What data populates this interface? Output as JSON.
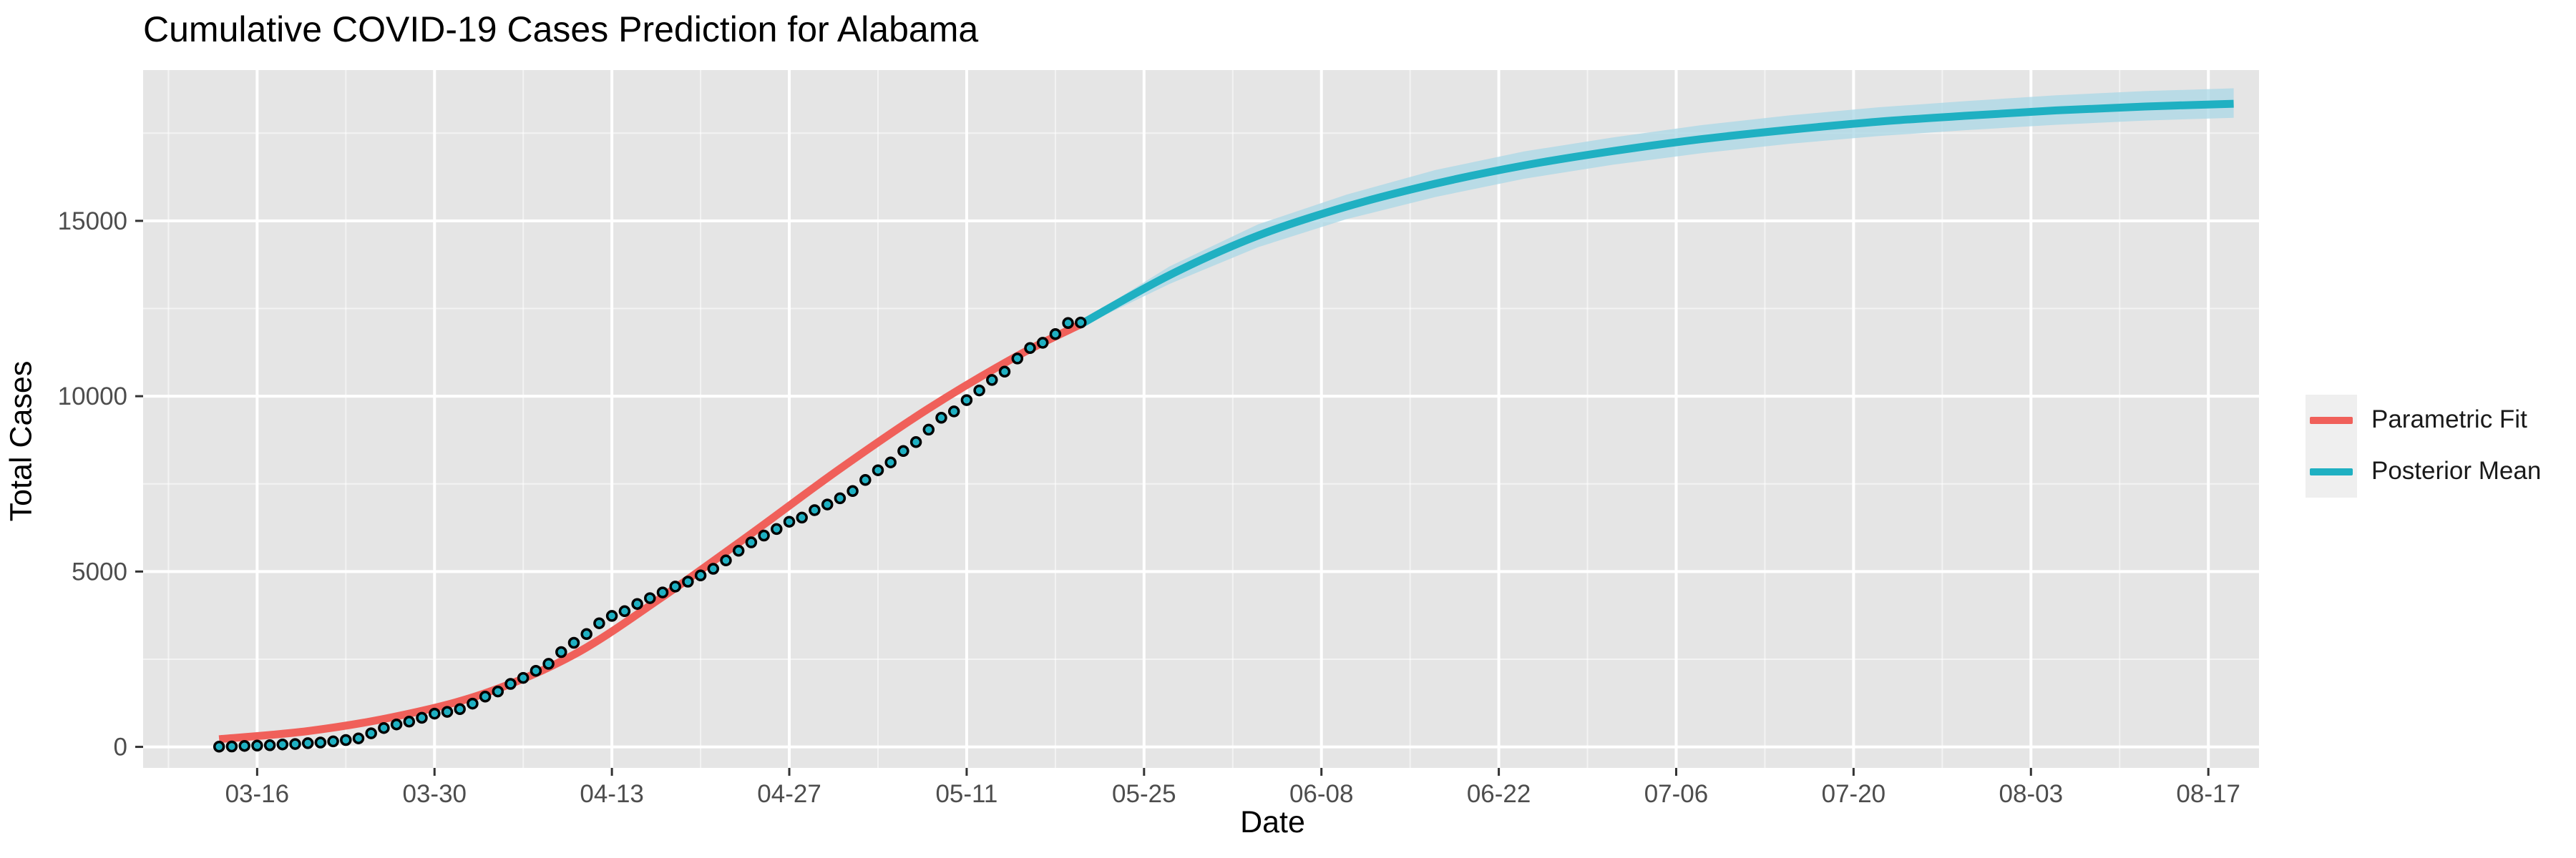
{
  "chart_data": {
    "type": "line",
    "title": "Cumulative COVID-19 Cases Prediction for Alabama",
    "xlabel": "Date",
    "ylabel": "Total Cases",
    "x_axis": {
      "type": "date",
      "year": 2020,
      "range": [
        "2020-03-07",
        "2020-08-21"
      ],
      "tick_labels": [
        "03-16",
        "03-30",
        "04-13",
        "04-27",
        "05-11",
        "05-25",
        "06-08",
        "06-22",
        "07-06",
        "07-20",
        "08-03",
        "08-17"
      ],
      "tick_dates": [
        "2020-03-16",
        "2020-03-30",
        "2020-04-13",
        "2020-04-27",
        "2020-05-11",
        "2020-05-25",
        "2020-06-08",
        "2020-06-22",
        "2020-07-06",
        "2020-07-20",
        "2020-08-03",
        "2020-08-17"
      ]
    },
    "y_axis": {
      "range": [
        -600,
        19300
      ],
      "ticks": [
        0,
        5000,
        10000,
        15000
      ],
      "tick_labels": [
        "0",
        "5000",
        "10000",
        "15000"
      ]
    },
    "grid": true,
    "legend": {
      "position": "right",
      "entries": [
        {
          "label": "Parametric Fit",
          "color": "#f0605a"
        },
        {
          "label": "Posterior Mean",
          "color": "#1fb0c2"
        }
      ]
    },
    "colors": {
      "panel_background": "#e5e5e5",
      "grid": "#ffffff",
      "parametric_fit": "#f0605a",
      "posterior_mean": "#1fb0c2",
      "credible_band": "#a9d7e5",
      "observed_fill": "#1fb0c2",
      "observed_stroke": "#000000"
    },
    "series": [
      {
        "name": "Parametric Fit",
        "kind": "line",
        "x": [
          "2020-03-13",
          "2020-03-20",
          "2020-03-27",
          "2020-04-03",
          "2020-04-10",
          "2020-04-17",
          "2020-04-24",
          "2020-05-01",
          "2020-05-08",
          "2020-05-15",
          "2020-05-20"
        ],
        "y": [
          220,
          450,
          870,
          1530,
          2630,
          4280,
          6080,
          7930,
          9650,
          11150,
          12050
        ]
      },
      {
        "name": "Posterior Mean",
        "kind": "line",
        "x": [
          "2020-05-20",
          "2020-05-27",
          "2020-06-03",
          "2020-06-10",
          "2020-06-17",
          "2020-06-24",
          "2020-07-01",
          "2020-07-08",
          "2020-07-15",
          "2020-07-22",
          "2020-07-29",
          "2020-08-05",
          "2020-08-12",
          "2020-08-19"
        ],
        "y": [
          12050,
          13450,
          14580,
          15410,
          16060,
          16580,
          16990,
          17330,
          17600,
          17830,
          18000,
          18150,
          18260,
          18340
        ]
      },
      {
        "kind": "band",
        "x": [
          "2020-05-20",
          "2020-05-27",
          "2020-06-03",
          "2020-06-10",
          "2020-06-17",
          "2020-06-24",
          "2020-07-01",
          "2020-07-08",
          "2020-07-15",
          "2020-07-22",
          "2020-07-29",
          "2020-08-05",
          "2020-08-12",
          "2020-08-19"
        ],
        "lower": [
          11980,
          13200,
          14250,
          15050,
          15680,
          16200,
          16600,
          16930,
          17200,
          17420,
          17590,
          17740,
          17860,
          17940
        ],
        "upper": [
          12120,
          13700,
          14900,
          15750,
          16450,
          16980,
          17380,
          17730,
          18010,
          18240,
          18420,
          18580,
          18700,
          18780
        ]
      },
      {
        "kind": "points",
        "x": [
          "2020-03-13",
          "2020-03-14",
          "2020-03-15",
          "2020-03-16",
          "2020-03-17",
          "2020-03-18",
          "2020-03-19",
          "2020-03-20",
          "2020-03-21",
          "2020-03-22",
          "2020-03-23",
          "2020-03-24",
          "2020-03-25",
          "2020-03-26",
          "2020-03-27",
          "2020-03-28",
          "2020-03-29",
          "2020-03-30",
          "2020-03-31",
          "2020-04-01",
          "2020-04-02",
          "2020-04-03",
          "2020-04-04",
          "2020-04-05",
          "2020-04-06",
          "2020-04-07",
          "2020-04-08",
          "2020-04-09",
          "2020-04-10",
          "2020-04-11",
          "2020-04-12",
          "2020-04-13",
          "2020-04-14",
          "2020-04-15",
          "2020-04-16",
          "2020-04-17",
          "2020-04-18",
          "2020-04-19",
          "2020-04-20",
          "2020-04-21",
          "2020-04-22",
          "2020-04-23",
          "2020-04-24",
          "2020-04-25",
          "2020-04-26",
          "2020-04-27",
          "2020-04-28",
          "2020-04-29",
          "2020-04-30",
          "2020-05-01",
          "2020-05-02",
          "2020-05-03",
          "2020-05-04",
          "2020-05-05",
          "2020-05-06",
          "2020-05-07",
          "2020-05-08",
          "2020-05-09",
          "2020-05-10",
          "2020-05-11",
          "2020-05-12",
          "2020-05-13",
          "2020-05-14",
          "2020-05-15",
          "2020-05-16",
          "2020-05-17",
          "2020-05-18",
          "2020-05-19",
          "2020-05-20"
        ],
        "y": [
          6,
          12,
          28,
          36,
          46,
          68,
          80,
          106,
          124,
          157,
          196,
          242,
          386,
          538,
          639,
          720,
          830,
          947,
          999,
          1077,
          1233,
          1432,
          1580,
          1796,
          1968,
          2169,
          2369,
          2703,
          2968,
          3217,
          3525,
          3734,
          3870,
          4075,
          4241,
          4404,
          4571,
          4712,
          4888,
          5079,
          5317,
          5593,
          5832,
          6026,
          6213,
          6421,
          6539,
          6750,
          6912,
          7088,
          7294,
          7611,
          7888,
          8112,
          8437,
          8691,
          9046,
          9385,
          9567,
          9889,
          10164,
          10464,
          10700,
          11074,
          11373,
          11523,
          11771,
          12086,
          12100
        ]
      }
    ]
  }
}
